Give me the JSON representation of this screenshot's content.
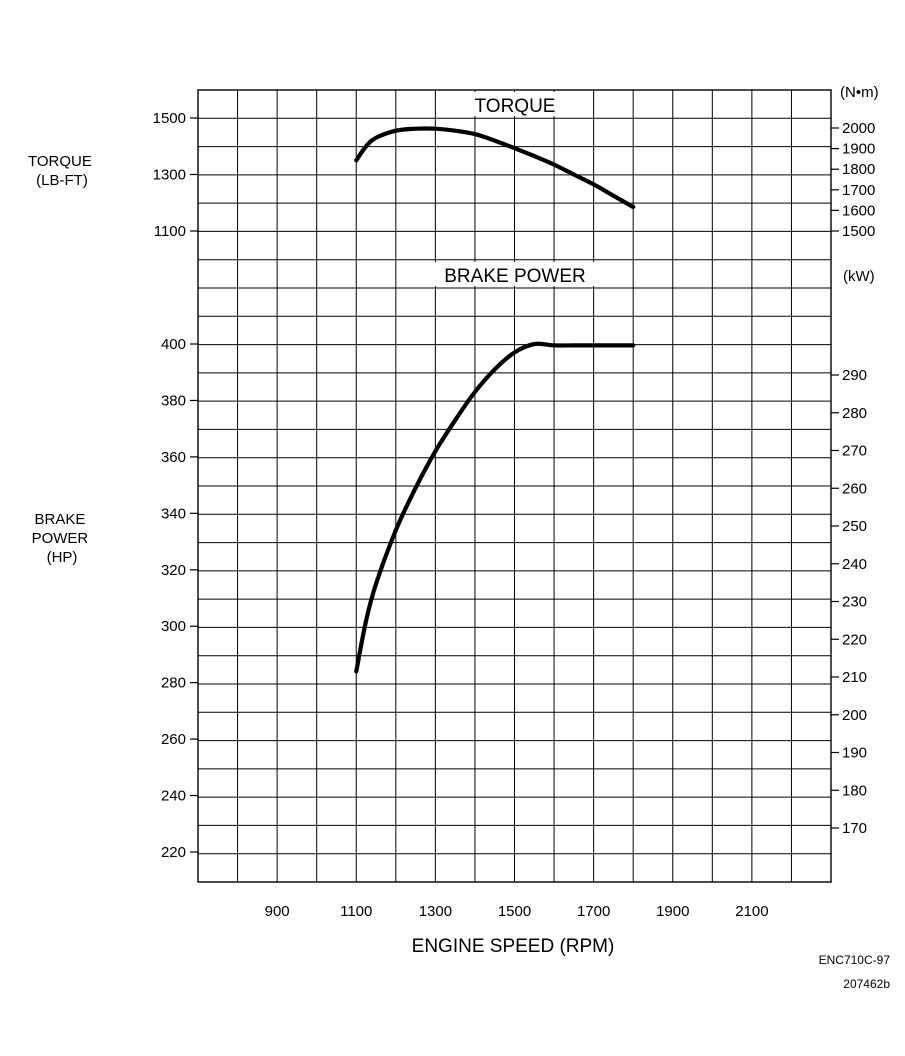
{
  "chart_data": {
    "type": "line",
    "title": "",
    "x_axis": {
      "label": "ENGINE SPEED (RPM)",
      "range": [
        700,
        2300
      ],
      "ticks": [
        900,
        1100,
        1300,
        1500,
        1700,
        1900,
        2100
      ]
    },
    "panels": [
      {
        "name": "torque",
        "title": "TORQUE",
        "left_axis": {
          "label_lines": [
            "TORQUE",
            "(LB-FT)"
          ],
          "ticks": [
            1100,
            1300,
            1500
          ]
        },
        "right_axis": {
          "unit": "(N•m)",
          "ticks": [
            1500,
            1600,
            1700,
            1800,
            1900,
            2000
          ]
        },
        "series": [
          {
            "name": "",
            "x": [
              1100,
              1125,
              1150,
              1200,
              1250,
              1300,
              1350,
              1400,
              1450,
              1500,
              1550,
              1600,
              1650,
              1700,
              1750,
              1800
            ],
            "y": [
              1350,
              1400,
              1430,
              1455,
              1462,
              1462,
              1455,
              1443,
              1420,
              1393,
              1365,
              1335,
              1300,
              1265,
              1225,
              1185
            ]
          }
        ]
      },
      {
        "name": "brake-power",
        "title": "BRAKE POWER",
        "left_axis": {
          "label_lines": [
            "BRAKE",
            "POWER",
            "(HP)"
          ],
          "ticks": [
            220,
            240,
            260,
            280,
            300,
            320,
            340,
            360,
            380,
            400
          ]
        },
        "right_axis": {
          "unit": "(kW)",
          "ticks": [
            170,
            180,
            190,
            200,
            210,
            220,
            230,
            240,
            250,
            260,
            270,
            280,
            290
          ]
        },
        "series": [
          {
            "name": "",
            "x": [
              1100,
              1125,
              1150,
              1200,
              1250,
              1300,
              1350,
              1400,
              1450,
              1500,
              1550,
              1600,
              1650,
              1700,
              1750,
              1800
            ],
            "y": [
              284,
              302,
              315,
              334,
              349,
              362,
              373,
              383,
              391,
              397,
              400,
              399.5,
              399.5,
              399.5,
              399.5,
              399.5
            ]
          }
        ]
      }
    ],
    "grid": true,
    "legend": "none"
  },
  "document_code": {
    "line1": "ENC710C-97",
    "line2": "207462b"
  }
}
